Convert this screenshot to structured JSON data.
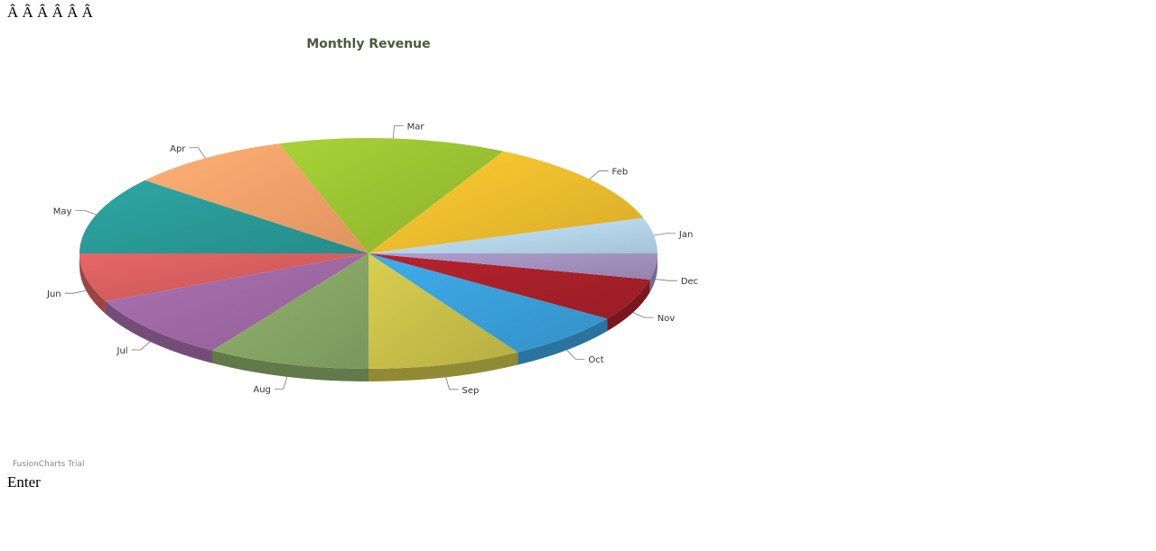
{
  "page": {
    "header_text": "Â Â  Â Â  Â Â",
    "footer_text": "Enter",
    "watermark": "FusionCharts Trial"
  },
  "chart_data": {
    "type": "pie",
    "style": "3d",
    "title": "Monthly Revenue",
    "categories": [
      "Jan",
      "Feb",
      "Mar",
      "Apr",
      "May",
      "Jun",
      "Jul",
      "Aug",
      "Sep",
      "Oct",
      "Nov",
      "Dec"
    ],
    "values": [
      5.5,
      13.5,
      14,
      10,
      12,
      7.5,
      10,
      10,
      9.5,
      7.5,
      6.5,
      4
    ],
    "colors": [
      "#b7d9f0",
      "#efbe2d",
      "#9cc332",
      "#f8a36b",
      "#2a9b98",
      "#d75e5e",
      "#a06aa6",
      "#88a866",
      "#c9c04a",
      "#3aa0db",
      "#a9202a",
      "#a392c0"
    ],
    "legend": "none",
    "labels_on_slices": true
  }
}
